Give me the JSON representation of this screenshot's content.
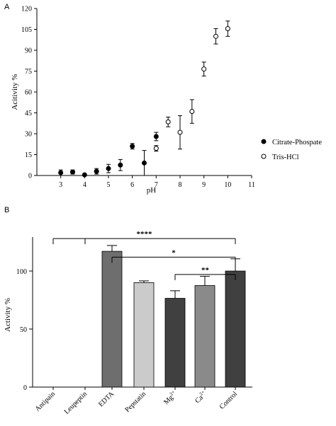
{
  "chart_data": [
    {
      "type": "scatter",
      "panel": "A",
      "xlabel": "pH",
      "ylabel": "Acitivity %",
      "xlim": [
        2,
        11
      ],
      "ylim": [
        0,
        120
      ],
      "x_ticks": [
        3,
        4,
        5,
        6,
        7,
        8,
        9,
        10,
        11
      ],
      "y_ticks": [
        0,
        15,
        30,
        45,
        60,
        75,
        90,
        105,
        120
      ],
      "legend_position": "right",
      "grid": false,
      "series": [
        {
          "name": "Citrate-Phospate",
          "marker": "filled-circle",
          "color": "#000000",
          "points": [
            {
              "x": 3.0,
              "y": 2,
              "err": 2
            },
            {
              "x": 3.5,
              "y": 2.5,
              "err": 1.5
            },
            {
              "x": 4.0,
              "y": 0.5,
              "err": 0.5
            },
            {
              "x": 4.5,
              "y": 3,
              "err": 2
            },
            {
              "x": 5.0,
              "y": 5,
              "err": 3
            },
            {
              "x": 5.5,
              "y": 7.5,
              "err": 4
            },
            {
              "x": 6.0,
              "y": 21,
              "err": 2
            },
            {
              "x": 6.5,
              "y": 9,
              "err": 9
            },
            {
              "x": 7.0,
              "y": 28,
              "err": 3
            }
          ]
        },
        {
          "name": "Tris-HCl",
          "marker": "open-circle",
          "color": "#000000",
          "points": [
            {
              "x": 7.0,
              "y": 19.5,
              "err": 2
            },
            {
              "x": 7.5,
              "y": 38.5,
              "err": 3.5
            },
            {
              "x": 8.0,
              "y": 31,
              "err": 12
            },
            {
              "x": 8.5,
              "y": 46,
              "err": 8.5
            },
            {
              "x": 9.0,
              "y": 76.5,
              "err": 5
            },
            {
              "x": 9.5,
              "y": 100,
              "err": 5.5
            },
            {
              "x": 10.0,
              "y": 105.5,
              "err": 5.5
            }
          ]
        }
      ]
    },
    {
      "type": "bar",
      "panel": "B",
      "ylabel": "Activity %",
      "ylim": [
        0,
        130
      ],
      "y_ticks": [
        0,
        50,
        100
      ],
      "grid": false,
      "categories": [
        {
          "pre": "Antipain",
          "sup": "",
          "post": ""
        },
        {
          "pre": "Leupeptin",
          "sup": "",
          "post": ""
        },
        {
          "pre": "EDTA",
          "sup": "",
          "post": ""
        },
        {
          "pre": "Pepstatin",
          "sup": "",
          "post": ""
        },
        {
          "pre": "Mg",
          "sup": "2+",
          "post": ""
        },
        {
          "pre": "Ca",
          "sup": "2+",
          "post": ""
        },
        {
          "pre": "Control",
          "sup": "",
          "post": ""
        }
      ],
      "values": [
        0,
        0,
        117,
        90,
        76.5,
        87.5,
        100
      ],
      "errors": [
        0,
        0,
        5,
        1.5,
        6.5,
        8,
        10.5
      ],
      "bar_colors": [
        "#555555",
        "#555555",
        "#6e6e6e",
        "#cbcbcb",
        "#404040",
        "#8a8a8a",
        "#404040"
      ],
      "significance": [
        {
          "label": "****",
          "from": [
            0,
            1
          ],
          "to": 6,
          "level": 128
        },
        {
          "label": "*",
          "from": [
            2
          ],
          "to": 6,
          "level": 112
        },
        {
          "label": "**",
          "from": [
            4
          ],
          "to": 6,
          "level": 97
        }
      ]
    }
  ],
  "panel_labels": {
    "a": "A",
    "b": "B"
  }
}
